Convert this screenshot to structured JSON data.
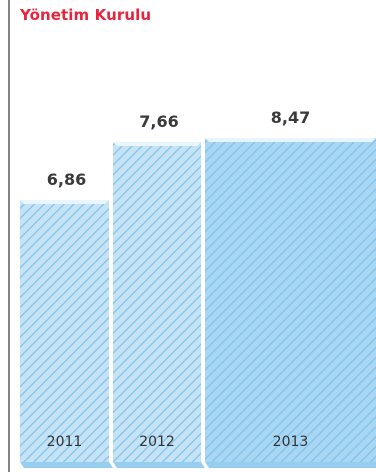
{
  "chart_data": {
    "type": "bar",
    "title": "Yönetim Kurulu",
    "categories": [
      "2011",
      "2012",
      "2013"
    ],
    "values": [
      6.86,
      7.66,
      8.47
    ],
    "value_labels": [
      "6,86",
      "7,66",
      "8,47"
    ],
    "xlabel": "",
    "ylabel": "",
    "legend": "none",
    "grid": false
  },
  "colors": {
    "title": "#e8243c",
    "bar_fill_light": "#c6e3f5",
    "bar_fill_dark": "#a9d6f3",
    "bar_hatch": "#7cc2ec",
    "bar_top": "#e9f5fc",
    "axis": "#333333",
    "value_label": "#3a3a3a",
    "year_label": "#333333"
  }
}
